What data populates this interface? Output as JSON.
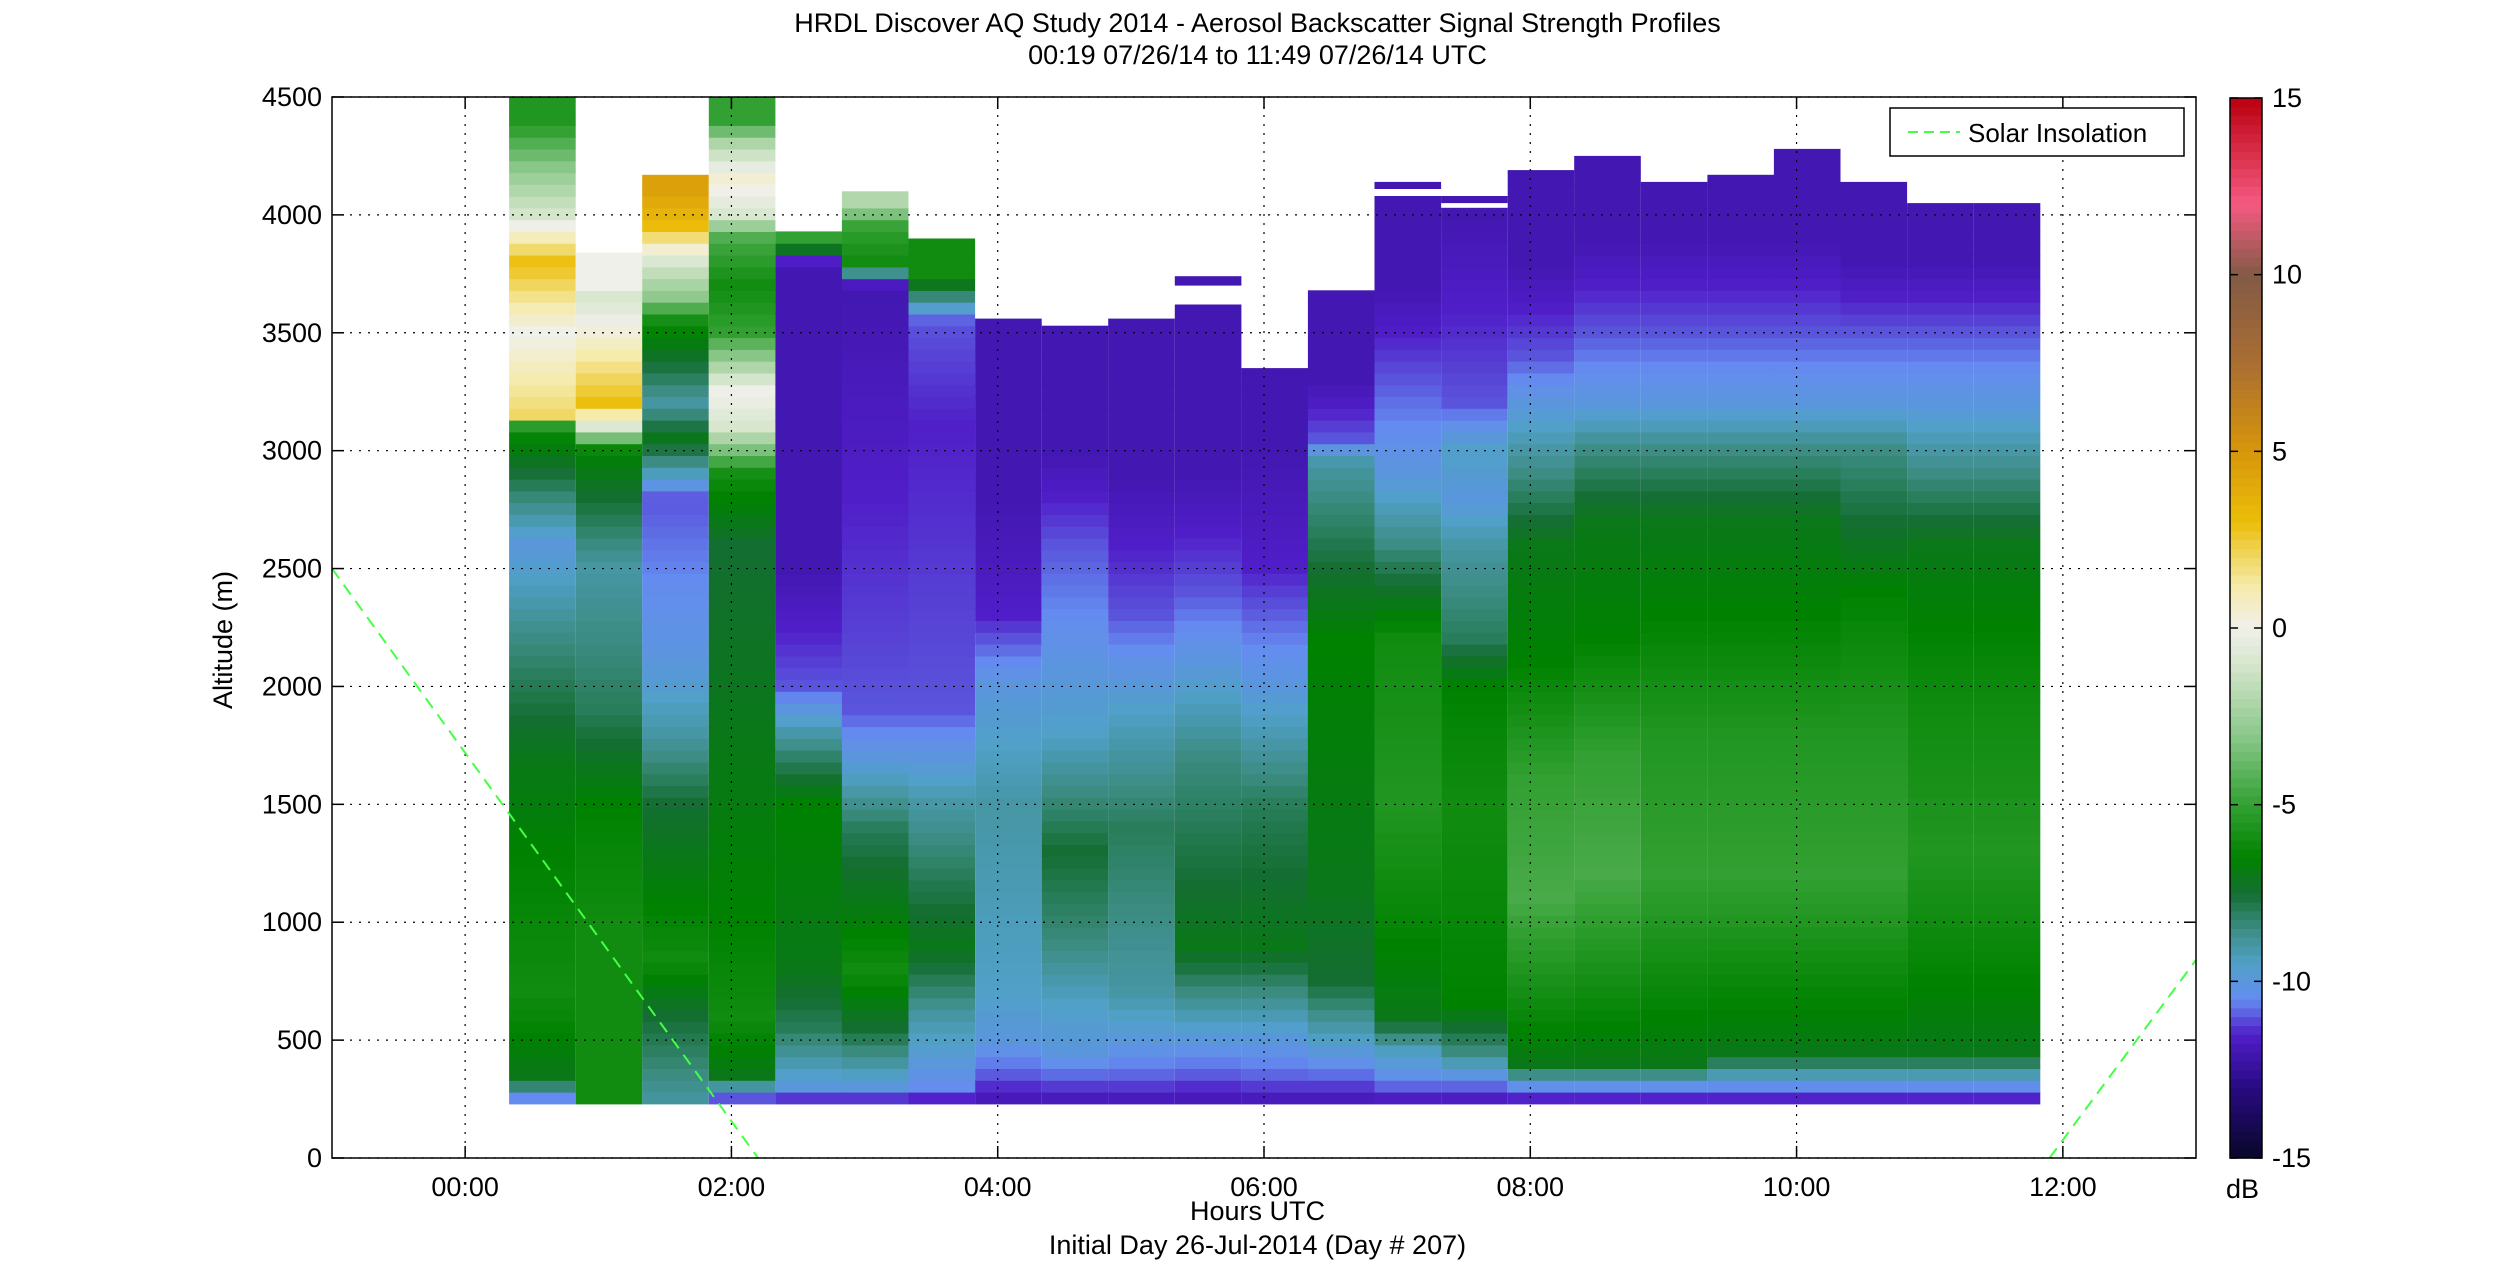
{
  "title_line1": "HRDL Discover AQ Study 2014 - Aerosol Backscatter Signal Strength Profiles",
  "title_line2": "00:19 07/26/14 to 11:49 07/26/14  UTC",
  "xlabel": "Hours UTC",
  "xlabel2": "Initial Day 26-Jul-2014 (Day # 207)",
  "ylabel": "Altitude (m)",
  "legend_label": "Solar Insolation",
  "colorbar_label": "dB",
  "colors": {
    "background": "#ffffff",
    "grid": "#000000",
    "solar_line": "#44ff44"
  },
  "chart_data": {
    "type": "heatmap",
    "title": "HRDL Discover AQ Study 2014 - Aerosol Backscatter Signal Strength Profiles",
    "subtitle": "00:19 07/26/14 to 11:49 07/26/14  UTC",
    "xlabel": "Hours UTC",
    "ylabel": "Altitude (m)",
    "xlim": [
      -1.0,
      13.0
    ],
    "ylim": [
      0,
      4500
    ],
    "x_ticks": [
      0,
      2,
      4,
      6,
      8,
      10,
      12
    ],
    "x_tick_labels": [
      "00:00",
      "02:00",
      "04:00",
      "06:00",
      "08:00",
      "10:00",
      "12:00"
    ],
    "y_ticks": [
      0,
      500,
      1000,
      1500,
      2000,
      2500,
      3000,
      3500,
      4000,
      4500
    ],
    "y_tick_labels": [
      "0",
      "500",
      "1000",
      "1500",
      "2000",
      "2500",
      "3000",
      "3500",
      "4000",
      "4500"
    ],
    "grid": true,
    "legend": "top-right",
    "colorbar": {
      "label": "dB",
      "range": [
        -15,
        15
      ],
      "ticks": [
        -15,
        -10,
        -5,
        0,
        5,
        10,
        15
      ]
    },
    "profile_bottom_m": 230,
    "profiles": [
      {
        "start": 0.33,
        "end": 0.83,
        "top": 4500,
        "layers": [
          [
            230,
            -12
          ],
          [
            280,
            -9
          ],
          [
            350,
            -7
          ],
          [
            700,
            -6
          ],
          [
            1300,
            -6.5
          ],
          [
            1700,
            -7
          ],
          [
            2200,
            -8.5
          ],
          [
            2600,
            -10
          ],
          [
            3100,
            -6
          ],
          [
            3150,
            2
          ],
          [
            3500,
            0
          ],
          [
            3800,
            3
          ],
          [
            4000,
            -1
          ],
          [
            4200,
            -3
          ],
          [
            4400,
            -5.5
          ]
        ]
      },
      {
        "start": 0.83,
        "end": 1.33,
        "top": 3840,
        "layers": [
          [
            250,
            -6
          ],
          [
            1000,
            -6
          ],
          [
            1500,
            -6.5
          ],
          [
            1900,
            -8
          ],
          [
            2500,
            -9
          ],
          [
            3000,
            -6.5
          ],
          [
            3100,
            -1
          ],
          [
            3200,
            3
          ],
          [
            3650,
            -1
          ],
          [
            3700,
            0
          ]
        ]
      },
      {
        "start": 1.33,
        "end": 1.83,
        "top": 4170,
        "layers": [
          [
            230,
            -9
          ],
          [
            600,
            -7.5
          ],
          [
            850,
            -6
          ],
          [
            1500,
            -7.5
          ],
          [
            1800,
            -9
          ],
          [
            2100,
            -10
          ],
          [
            2800,
            -11
          ],
          [
            3050,
            -7
          ],
          [
            3200,
            -9
          ],
          [
            3550,
            -6
          ],
          [
            3650,
            -3
          ],
          [
            3800,
            -1
          ],
          [
            3950,
            3
          ],
          [
            4100,
            4.5
          ]
        ]
      },
      {
        "start": 1.83,
        "end": 2.33,
        "top": 4500,
        "layers": [
          [
            230,
            -12
          ],
          [
            280,
            -10
          ],
          [
            350,
            -7
          ],
          [
            600,
            -6
          ],
          [
            1000,
            -6.5
          ],
          [
            2600,
            -7.5
          ],
          [
            2900,
            -6
          ],
          [
            3100,
            -1
          ],
          [
            3250,
            0
          ],
          [
            3500,
            -5
          ],
          [
            3700,
            -6
          ],
          [
            3900,
            -4.5
          ],
          [
            4000,
            -1
          ],
          [
            4150,
            0.5
          ],
          [
            4300,
            -2
          ],
          [
            4400,
            -5
          ]
        ]
      },
      {
        "start": 2.33,
        "end": 2.83,
        "top": 3930,
        "layers": [
          [
            230,
            -12
          ],
          [
            300,
            -10
          ],
          [
            550,
            -8
          ],
          [
            800,
            -7
          ],
          [
            1500,
            -6.5
          ],
          [
            1800,
            -9
          ],
          [
            2000,
            -11
          ],
          [
            2500,
            -12
          ],
          [
            3200,
            -12
          ],
          [
            3800,
            -12
          ],
          [
            3880,
            -5
          ]
        ]
      },
      {
        "start": 2.83,
        "end": 3.33,
        "top": 4100,
        "layers": [
          [
            230,
            -12
          ],
          [
            300,
            -10
          ],
          [
            550,
            -7.5
          ],
          [
            800,
            -6
          ],
          [
            1400,
            -8
          ],
          [
            1700,
            -10
          ],
          [
            1900,
            -11
          ],
          [
            3700,
            -12
          ],
          [
            3800,
            -6
          ],
          [
            3950,
            -5
          ],
          [
            4050,
            -2
          ]
        ]
      },
      {
        "start": 3.33,
        "end": 3.83,
        "top": 3900,
        "layers": [
          [
            230,
            -12
          ],
          [
            300,
            -10.5
          ],
          [
            600,
            -9
          ],
          [
            900,
            -7
          ],
          [
            1500,
            -9
          ],
          [
            1900,
            -11
          ],
          [
            3100,
            -11.5
          ],
          [
            3550,
            -11
          ],
          [
            3750,
            -6
          ]
        ]
      },
      {
        "start": 3.83,
        "end": 4.33,
        "top": 3560,
        "layers": [
          [
            230,
            -12
          ],
          [
            350,
            -11
          ],
          [
            500,
            -10
          ],
          [
            700,
            -9.5
          ],
          [
            1500,
            -9
          ],
          [
            2000,
            -10
          ],
          [
            2300,
            -11.5
          ],
          [
            2800,
            -12
          ],
          [
            3300,
            -12
          ]
        ]
      },
      {
        "start": 4.33,
        "end": 4.83,
        "top": 3530,
        "layers": [
          [
            230,
            -12
          ],
          [
            330,
            -11
          ],
          [
            450,
            -10
          ],
          [
            650,
            -9.5
          ],
          [
            900,
            -8.5
          ],
          [
            1300,
            -7.5
          ],
          [
            1800,
            -9.5
          ],
          [
            2300,
            -10.5
          ],
          [
            2600,
            -11
          ],
          [
            3000,
            -12
          ]
        ]
      },
      {
        "start": 4.83,
        "end": 5.33,
        "top": 3560,
        "layers": [
          [
            230,
            -12
          ],
          [
            330,
            -11
          ],
          [
            500,
            -10
          ],
          [
            700,
            -9
          ],
          [
            1400,
            -8
          ],
          [
            1900,
            -9.5
          ],
          [
            2300,
            -11
          ],
          [
            2900,
            -12
          ]
        ]
      },
      {
        "start": 5.33,
        "end": 5.83,
        "top": 3620,
        "layers": [
          [
            230,
            -12
          ],
          [
            350,
            -11
          ],
          [
            500,
            -10
          ],
          [
            900,
            -7
          ],
          [
            1700,
            -8.5
          ],
          [
            2100,
            -10
          ],
          [
            2400,
            -11
          ],
          [
            2900,
            -12
          ],
          [
            3700,
            -12
          ]
        ]
      },
      {
        "start": 5.83,
        "end": 6.33,
        "top": 3350,
        "layers": [
          [
            230,
            -12
          ],
          [
            330,
            -11
          ],
          [
            500,
            -10
          ],
          [
            900,
            -7
          ],
          [
            1500,
            -8
          ],
          [
            2000,
            -10
          ],
          [
            2500,
            -11.5
          ],
          [
            3000,
            -12
          ]
        ]
      },
      {
        "start": 6.33,
        "end": 6.83,
        "top": 3680,
        "layers": [
          [
            230,
            -12
          ],
          [
            330,
            -11
          ],
          [
            500,
            -9.5
          ],
          [
            750,
            -7.5
          ],
          [
            1200,
            -7
          ],
          [
            2200,
            -6.5
          ],
          [
            2500,
            -7.5
          ],
          [
            2950,
            -9
          ],
          [
            3050,
            -11
          ],
          [
            3300,
            -12
          ]
        ]
      },
      {
        "start": 6.83,
        "end": 7.33,
        "top": 4080,
        "layers": [
          [
            230,
            -12
          ],
          [
            330,
            -10.5
          ],
          [
            450,
            -9.5
          ],
          [
            600,
            -7
          ],
          [
            1500,
            -5.5
          ],
          [
            2200,
            -6
          ],
          [
            2600,
            -8.5
          ],
          [
            2900,
            -10
          ],
          [
            3300,
            -11
          ],
          [
            3700,
            -12
          ],
          [
            4100,
            -12
          ]
        ]
      },
      {
        "start": 7.33,
        "end": 7.83,
        "top": 4030,
        "layers": [
          [
            230,
            -12
          ],
          [
            330,
            -10.5
          ],
          [
            450,
            -8.5
          ],
          [
            650,
            -6.5
          ],
          [
            1500,
            -6
          ],
          [
            2000,
            -6.5
          ],
          [
            2200,
            -8
          ],
          [
            2600,
            -9
          ],
          [
            2800,
            -10
          ],
          [
            3000,
            -9.5
          ],
          [
            3200,
            -11
          ],
          [
            3600,
            -11.5
          ],
          [
            4000,
            -12
          ]
        ]
      },
      {
        "start": 7.83,
        "end": 8.33,
        "top": 4190,
        "layers": [
          [
            230,
            -12
          ],
          [
            300,
            -10.5
          ],
          [
            400,
            -7
          ],
          [
            1100,
            -4.5
          ],
          [
            1600,
            -5
          ],
          [
            2100,
            -6.5
          ],
          [
            2600,
            -7
          ],
          [
            2900,
            -8.5
          ],
          [
            3200,
            -10
          ],
          [
            3400,
            -11
          ],
          [
            3800,
            -12
          ]
        ]
      },
      {
        "start": 8.33,
        "end": 8.83,
        "top": 4250,
        "layers": [
          [
            230,
            -12
          ],
          [
            300,
            -10.5
          ],
          [
            400,
            -7
          ],
          [
            1200,
            -4.5
          ],
          [
            1700,
            -5
          ],
          [
            2200,
            -6.5
          ],
          [
            2700,
            -7
          ],
          [
            3000,
            -8.5
          ],
          [
            3200,
            -10
          ],
          [
            3500,
            -11
          ],
          [
            3900,
            -12
          ]
        ]
      },
      {
        "start": 8.83,
        "end": 9.33,
        "top": 4140,
        "layers": [
          [
            230,
            -12
          ],
          [
            300,
            -10.5
          ],
          [
            400,
            -7
          ],
          [
            1200,
            -5
          ],
          [
            1800,
            -5.5
          ],
          [
            2300,
            -6.5
          ],
          [
            2700,
            -7
          ],
          [
            3000,
            -8.5
          ],
          [
            3200,
            -10
          ],
          [
            3500,
            -11
          ],
          [
            3900,
            -12
          ]
        ]
      },
      {
        "start": 9.33,
        "end": 9.83,
        "top": 4170,
        "layers": [
          [
            230,
            -12
          ],
          [
            300,
            -10.5
          ],
          [
            450,
            -7
          ],
          [
            1200,
            -5
          ],
          [
            1800,
            -5.5
          ],
          [
            2300,
            -6.5
          ],
          [
            2700,
            -7
          ],
          [
            3000,
            -8.5
          ],
          [
            3200,
            -10
          ],
          [
            3500,
            -11
          ],
          [
            3900,
            -12
          ]
        ]
      },
      {
        "start": 9.83,
        "end": 10.33,
        "top": 4280,
        "layers": [
          [
            230,
            -12
          ],
          [
            300,
            -10.5
          ],
          [
            450,
            -7
          ],
          [
            1200,
            -5
          ],
          [
            1800,
            -5.5
          ],
          [
            2300,
            -6.5
          ],
          [
            2700,
            -7
          ],
          [
            3000,
            -8.5
          ],
          [
            3200,
            -10
          ],
          [
            3500,
            -11
          ],
          [
            3900,
            -12
          ]
        ]
      },
      {
        "start": 10.33,
        "end": 10.83,
        "top": 4140,
        "layers": [
          [
            230,
            -12
          ],
          [
            300,
            -10.5
          ],
          [
            450,
            -7
          ],
          [
            1200,
            -5
          ],
          [
            1800,
            -5.5
          ],
          [
            2400,
            -6.5
          ],
          [
            2700,
            -7.5
          ],
          [
            3000,
            -8.5
          ],
          [
            3200,
            -10
          ],
          [
            3500,
            -11
          ],
          [
            3800,
            -12
          ]
        ]
      },
      {
        "start": 10.83,
        "end": 11.33,
        "top": 4050,
        "layers": [
          [
            230,
            -12
          ],
          [
            300,
            -10.5
          ],
          [
            450,
            -7
          ],
          [
            1300,
            -5.5
          ],
          [
            1900,
            -6
          ],
          [
            2600,
            -7
          ],
          [
            2800,
            -8
          ],
          [
            3000,
            -9
          ],
          [
            3200,
            -10
          ],
          [
            3500,
            -11
          ],
          [
            3800,
            -12
          ]
        ]
      },
      {
        "start": 11.33,
        "end": 11.83,
        "top": 4050,
        "layers": [
          [
            230,
            -12
          ],
          [
            300,
            -10.5
          ],
          [
            450,
            -7
          ],
          [
            1300,
            -5.5
          ],
          [
            1900,
            -6
          ],
          [
            2600,
            -7
          ],
          [
            2800,
            -8
          ],
          [
            3000,
            -9
          ],
          [
            3200,
            -10
          ],
          [
            3500,
            -11
          ],
          [
            3800,
            -12
          ]
        ]
      }
    ],
    "floating_segments": [
      {
        "start": 5.33,
        "end": 5.83,
        "y0": 3700,
        "y1": 3740,
        "value": -12
      },
      {
        "start": 6.83,
        "end": 7.33,
        "y0": 4110,
        "y1": 4140,
        "value": -12
      },
      {
        "start": 7.33,
        "end": 7.83,
        "y0": 4050,
        "y1": 4080,
        "value": -12
      }
    ],
    "series": [
      {
        "name": "Solar Insolation",
        "style": "dashed",
        "segments": [
          {
            "x": [
              -1.0,
              2.2
            ],
            "y": [
              2500,
              0
            ]
          },
          {
            "x": [
              11.9,
              13.0
            ],
            "y": [
              0,
              840
            ]
          }
        ]
      }
    ]
  }
}
